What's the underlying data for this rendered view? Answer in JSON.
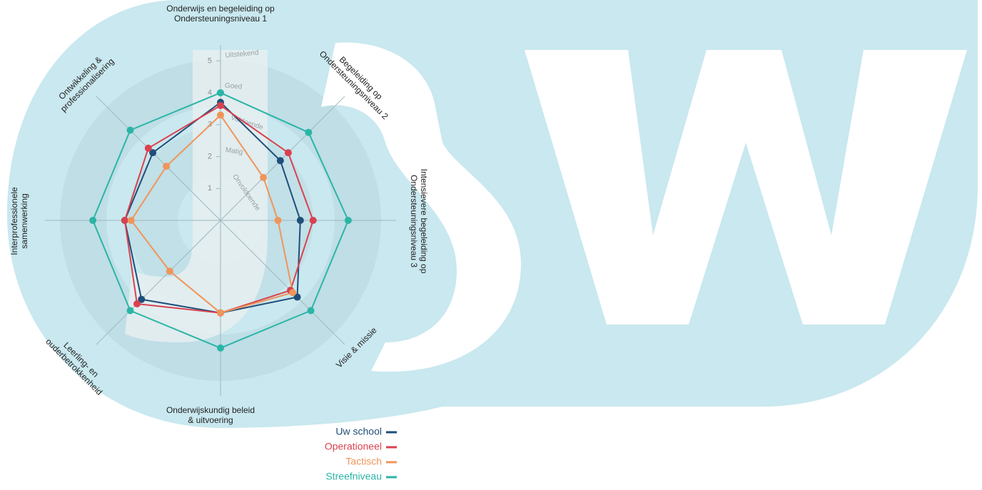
{
  "chart_data": {
    "type": "radar",
    "categories": [
      [
        "Onderwijs en begeleiding op",
        "Ondersteuningsniveau 1"
      ],
      [
        "Begeleiding op",
        "Ondersteuningsniveau 2"
      ],
      [
        "Intensievere begeleiding op",
        "Ondersteuningsniveau 3"
      ],
      [
        "Visie & missie"
      ],
      [
        "Onderwijskundig beleid",
        "& uitvoering"
      ],
      [
        "Leerling- en",
        "ouderbetrokkenheid"
      ],
      [
        "Interprofessionele",
        "samenwerking"
      ],
      [
        "Ontwikkeling &",
        "professionalisering"
      ]
    ],
    "series": [
      {
        "name": "Uw school",
        "color": "#1f4e79",
        "values": [
          3.7,
          2.65,
          2.5,
          3.4,
          2.9,
          3.5,
          3.0,
          3.0
        ]
      },
      {
        "name": "Operationeel",
        "color": "#d9414f",
        "values": [
          3.6,
          3.0,
          2.9,
          3.1,
          2.9,
          3.7,
          3.0,
          3.2
        ]
      },
      {
        "name": "Tactisch",
        "color": "#f0955a",
        "values": [
          3.3,
          1.9,
          1.8,
          3.2,
          2.9,
          2.25,
          2.8,
          2.4
        ]
      },
      {
        "name": "Streefniveau",
        "color": "#2bb5a6",
        "values": [
          4.0,
          3.9,
          4.0,
          4.0,
          4.0,
          4.0,
          4.0,
          4.0
        ]
      }
    ],
    "rlim": [
      0,
      5.5
    ],
    "rticks": [
      1,
      2,
      3,
      4,
      5
    ],
    "level_labels": [
      "Onvoldoende",
      "Matig",
      "Voldoende",
      "Goed",
      "Uitstekend"
    ]
  }
}
